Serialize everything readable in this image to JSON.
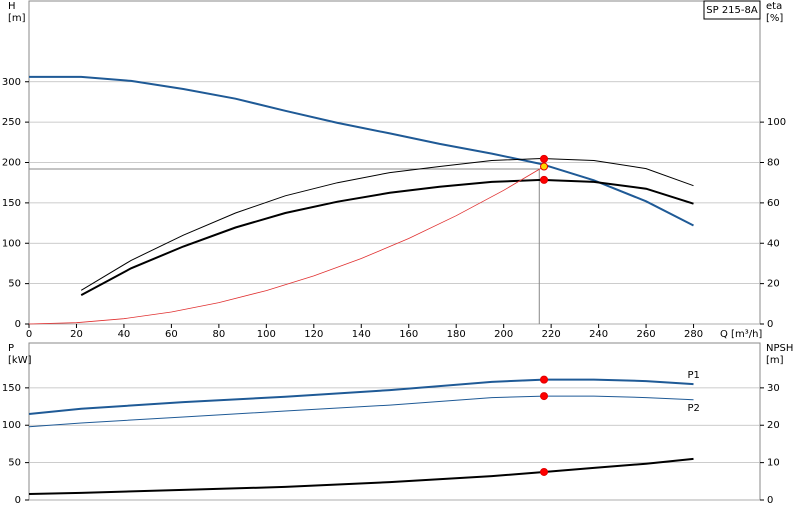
{
  "chart_data": [
    {
      "type": "line",
      "title": "SP 215-8A",
      "ylabel": [
        "H",
        "[m]"
      ],
      "y2label": [
        "eta",
        "[%]"
      ],
      "xlabel": "Q [m³/h]",
      "xlim": [
        0,
        308
      ],
      "xticks": [
        0,
        20,
        40,
        60,
        80,
        100,
        120,
        140,
        160,
        180,
        200,
        220,
        240,
        260,
        280
      ],
      "ylim": [
        0,
        400
      ],
      "yticks": [
        0,
        50,
        100,
        150,
        200,
        250,
        300
      ],
      "y2lim": [
        0,
        160
      ],
      "y2ticks": [
        0,
        20,
        40,
        60,
        80,
        100
      ],
      "grid": true,
      "series": [
        {
          "color": "#1f5a96",
          "linewidth": 2,
          "axis": "y",
          "x": [
            0,
            22,
            43,
            65,
            87,
            108,
            130,
            152,
            173,
            195,
            216,
            238,
            260,
            280
          ],
          "values": [
            306,
            306,
            301,
            291,
            279,
            264,
            249,
            236,
            223,
            211,
            198,
            178,
            152,
            122
          ]
        },
        {
          "color": "#000000",
          "linewidth": 1,
          "axis": "y2",
          "x": [
            22,
            43,
            65,
            87,
            108,
            130,
            152,
            173,
            195,
            216,
            238,
            260,
            280
          ],
          "values": [
            16.7,
            31.5,
            44,
            55,
            63.5,
            70,
            75,
            78,
            81,
            82,
            81,
            77,
            68.5
          ]
        },
        {
          "color": "#000000",
          "linewidth": 2,
          "axis": "y2",
          "x": [
            22,
            43,
            65,
            87,
            108,
            130,
            152,
            173,
            195,
            216,
            238,
            260,
            280
          ],
          "values": [
            14.3,
            27.6,
            38.4,
            47.8,
            55,
            60.6,
            65,
            68,
            70.4,
            71.4,
            70.4,
            67,
            59.6
          ]
        },
        {
          "color": "#e03030",
          "linewidth": 0.8,
          "axis": "y",
          "x": [
            0,
            20,
            40,
            60,
            80,
            100,
            120,
            140,
            160,
            180,
            200,
            217
          ],
          "values": [
            0,
            1.66,
            6.6,
            14.9,
            26.5,
            41.4,
            59.6,
            81.1,
            105.9,
            134.1,
            165.6,
            195
          ]
        }
      ],
      "duty_point": {
        "x": 215,
        "y": 192
      },
      "markers": [
        {
          "x": 217,
          "y": 81.8,
          "axis": "y2",
          "color": "#ff0000"
        },
        {
          "x": 217,
          "y": 195,
          "axis": "y",
          "color": "#ffd700"
        },
        {
          "x": 217,
          "y": 71.4,
          "axis": "y2",
          "color": "#ff0000"
        }
      ]
    },
    {
      "type": "line",
      "ylabel": [
        "P",
        "[kW]"
      ],
      "y2label": [
        "NPSH",
        "[m]"
      ],
      "xlim": [
        0,
        308
      ],
      "ylim": [
        0,
        210
      ],
      "yticks": [
        0,
        50,
        100,
        150
      ],
      "y2lim": [
        0,
        42
      ],
      "y2ticks": [
        0,
        10,
        20,
        30
      ],
      "grid": true,
      "series": [
        {
          "name": "P1",
          "color": "#1f5a96",
          "linewidth": 2,
          "axis": "y",
          "x": [
            0,
            22,
            65,
            108,
            152,
            195,
            217,
            238,
            260,
            280
          ],
          "values": [
            115,
            122,
            131,
            138,
            147,
            158,
            161,
            161,
            159,
            155
          ]
        },
        {
          "name": "P2",
          "color": "#1f5a96",
          "linewidth": 1,
          "axis": "y",
          "x": [
            0,
            22,
            65,
            108,
            152,
            195,
            217,
            238,
            260,
            280
          ],
          "values": [
            98,
            103,
            111,
            119,
            127,
            137,
            139,
            139,
            137,
            134
          ]
        },
        {
          "color": "#000000",
          "linewidth": 2,
          "axis": "y2",
          "x": [
            0,
            22,
            65,
            108,
            152,
            195,
            217,
            238,
            260,
            280
          ],
          "values": [
            1.6,
            1.9,
            2.7,
            3.5,
            4.8,
            6.4,
            7.5,
            8.6,
            9.7,
            11
          ]
        }
      ],
      "markers": [
        {
          "x": 217,
          "y": 161,
          "axis": "y",
          "color": "#ff0000"
        },
        {
          "x": 217,
          "y": 139,
          "axis": "y",
          "color": "#ff0000"
        },
        {
          "x": 217,
          "y": 7.5,
          "axis": "y2",
          "color": "#ff0000"
        }
      ]
    }
  ]
}
